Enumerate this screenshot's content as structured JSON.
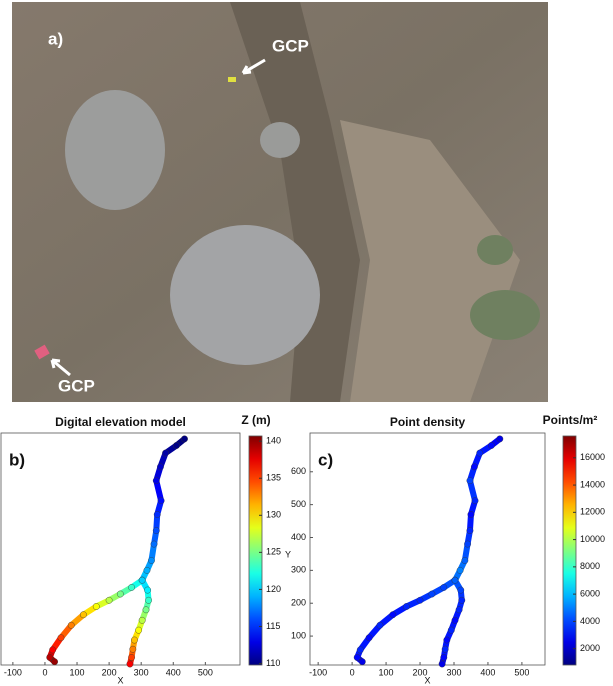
{
  "photo": {
    "label": "a)",
    "gcp_labels": [
      "GCP",
      "GCP"
    ]
  },
  "chart_data": [
    {
      "type": "scatter",
      "panel_label": "b)",
      "title": "Digital elevation model",
      "x_label": "X",
      "xlim": [
        -137,
        608
      ],
      "xticks": [
        -100,
        0,
        100,
        200,
        300,
        400,
        500
      ],
      "ylim": [
        12,
        718
      ],
      "colorbar": {
        "title": "Z (m)",
        "lim": [
          109.8,
          140.7
        ],
        "ticks": [
          110,
          115,
          120,
          125,
          130,
          135,
          140
        ]
      },
      "series": [
        {
          "x": [
            435,
            410,
            376,
            360,
            347,
            362,
            350,
            347,
            340,
            332,
            318,
            303
          ],
          "y": [
            700,
            680,
            657,
            615,
            573,
            512,
            470,
            421,
            380,
            330,
            300,
            270
          ],
          "values": [
            109,
            110,
            111,
            112,
            113,
            114,
            115,
            116,
            117,
            118,
            119,
            120
          ]
        },
        {
          "x": [
            303,
            270,
            235,
            200,
            160,
            120,
            82,
            50,
            24,
            15,
            30
          ],
          "y": [
            270,
            248,
            228,
            209,
            190,
            165,
            133,
            95,
            58,
            35,
            22
          ],
          "values": [
            121,
            123,
            125,
            127,
            129,
            131,
            133,
            135,
            137,
            139,
            140
          ]
        },
        {
          "x": [
            303,
            320,
            323,
            315,
            303,
            292,
            279,
            274,
            270,
            265
          ],
          "y": [
            270,
            240,
            209,
            180,
            148,
            118,
            88,
            60,
            35,
            15
          ],
          "values": [
            120,
            121,
            123,
            125,
            127,
            129,
            131,
            133,
            135,
            137
          ]
        }
      ]
    },
    {
      "type": "scatter",
      "panel_label": "c)",
      "title": "Point density",
      "x_label": "X",
      "y_label": "Y",
      "xlim": [
        -124,
        568
      ],
      "xticks": [
        -100,
        0,
        100,
        200,
        300,
        400,
        500
      ],
      "ylim": [
        12,
        718
      ],
      "yticks": [
        100,
        200,
        300,
        400,
        500,
        600
      ],
      "colorbar": {
        "title": "Points/m²",
        "lim": [
          800,
          17600
        ],
        "ticks": [
          2000,
          4000,
          6000,
          8000,
          10000,
          12000,
          14000,
          16000
        ]
      },
      "series": [
        {
          "x": [
            435,
            410,
            376,
            360,
            347,
            362,
            350,
            347,
            340,
            332,
            318,
            303
          ],
          "y": [
            700,
            680,
            657,
            615,
            573,
            512,
            470,
            421,
            380,
            330,
            300,
            270
          ],
          "values": [
            2500,
            3000,
            3500,
            3000,
            4000,
            3500,
            3000,
            3500,
            4000,
            4500,
            5000,
            4500
          ]
        },
        {
          "x": [
            303,
            270,
            235,
            200,
            160,
            120,
            82,
            50,
            24,
            15,
            30
          ],
          "y": [
            270,
            248,
            228,
            209,
            190,
            165,
            133,
            95,
            58,
            35,
            22
          ],
          "values": [
            4500,
            4000,
            4000,
            3500,
            3500,
            3000,
            3500,
            3000,
            3500,
            3000,
            2500
          ]
        },
        {
          "x": [
            303,
            320,
            323,
            315,
            303,
            292,
            279,
            274,
            270,
            265
          ],
          "y": [
            270,
            240,
            209,
            180,
            148,
            118,
            88,
            60,
            35,
            15
          ],
          "values": [
            4500,
            4000,
            3500,
            3500,
            3000,
            3500,
            3000,
            3500,
            3000,
            2500
          ]
        }
      ]
    }
  ]
}
